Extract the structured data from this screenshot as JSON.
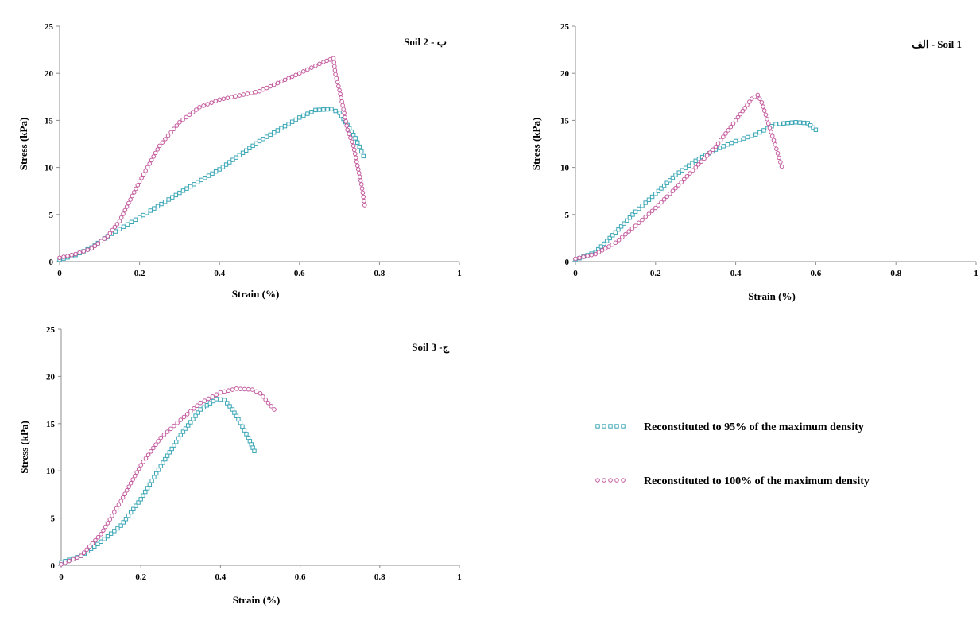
{
  "colors": {
    "series_95": "#3aa6b5",
    "series_100": "#c35a9e",
    "axis": "#8c8c8c"
  },
  "legend": {
    "items": [
      {
        "label": "Reconstituted to 95% of the maximum density",
        "marker": "square",
        "color": "#3aa6b5"
      },
      {
        "label": "Reconstituted to 100% of the maximum density",
        "marker": "circle",
        "color": "#c35a9e"
      }
    ]
  },
  "chart_data": [
    {
      "type": "scatter",
      "panel_label": "Soil 2 - ب",
      "xlabel": "Strain (%)",
      "ylabel": "Stress (kPa)",
      "xlim": [
        0,
        1
      ],
      "ylim": [
        0,
        25
      ],
      "xticks": [
        0,
        0.2,
        0.4,
        0.6,
        0.8,
        1
      ],
      "yticks": [
        0,
        5,
        10,
        15,
        20,
        25
      ],
      "grid": false,
      "series": [
        {
          "marker": "square",
          "color": "#3aa6b5",
          "points": [
            [
              0,
              0.2
            ],
            [
              0.04,
              0.7
            ],
            [
              0.08,
              1.5
            ],
            [
              0.12,
              2.7
            ],
            [
              0.16,
              3.7
            ],
            [
              0.2,
              4.7
            ],
            [
              0.3,
              7.3
            ],
            [
              0.4,
              9.8
            ],
            [
              0.5,
              12.8
            ],
            [
              0.6,
              15.3
            ],
            [
              0.64,
              16.1
            ],
            [
              0.68,
              16.2
            ],
            [
              0.7,
              15.8
            ],
            [
              0.72,
              14.5
            ],
            [
              0.74,
              13.1
            ],
            [
              0.75,
              12.2
            ],
            [
              0.76,
              11.2
            ]
          ]
        },
        {
          "marker": "circle",
          "color": "#c35a9e",
          "points": [
            [
              0,
              0.4
            ],
            [
              0.04,
              0.8
            ],
            [
              0.08,
              1.4
            ],
            [
              0.12,
              2.7
            ],
            [
              0.15,
              4.3
            ],
            [
              0.2,
              8.5
            ],
            [
              0.25,
              12.3
            ],
            [
              0.3,
              14.8
            ],
            [
              0.35,
              16.4
            ],
            [
              0.4,
              17.2
            ],
            [
              0.5,
              18.1
            ],
            [
              0.6,
              20.0
            ],
            [
              0.66,
              21.2
            ],
            [
              0.685,
              21.6
            ],
            [
              0.69,
              19.9
            ],
            [
              0.7,
              18.2
            ],
            [
              0.71,
              16.2
            ],
            [
              0.72,
              14.0
            ],
            [
              0.735,
              12.3
            ],
            [
              0.745,
              10.2
            ],
            [
              0.755,
              8.2
            ],
            [
              0.763,
              6.0
            ]
          ]
        }
      ]
    },
    {
      "type": "scatter",
      "panel_label": "الف - Soil 1",
      "xlabel": "Strain (%)",
      "ylabel": "Stress (kPa)",
      "xlim": [
        0,
        1
      ],
      "ylim": [
        0,
        25
      ],
      "xticks": [
        0,
        0.2,
        0.4,
        0.6,
        0.8,
        1
      ],
      "yticks": [
        0,
        5,
        10,
        15,
        20,
        25
      ],
      "grid": false,
      "series": [
        {
          "marker": "square",
          "color": "#3aa6b5",
          "points": [
            [
              0,
              0.2
            ],
            [
              0.05,
              1
            ],
            [
              0.1,
              3.1
            ],
            [
              0.15,
              5.3
            ],
            [
              0.2,
              7.2
            ],
            [
              0.25,
              9.2
            ],
            [
              0.3,
              10.7
            ],
            [
              0.35,
              11.9
            ],
            [
              0.4,
              12.8
            ],
            [
              0.45,
              13.5
            ],
            [
              0.5,
              14.6
            ],
            [
              0.55,
              14.8
            ],
            [
              0.58,
              14.7
            ],
            [
              0.6,
              14.0
            ]
          ]
        },
        {
          "marker": "circle",
          "color": "#c35a9e",
          "points": [
            [
              0,
              0.3
            ],
            [
              0.05,
              0.8
            ],
            [
              0.1,
              2
            ],
            [
              0.15,
              3.8
            ],
            [
              0.2,
              5.7
            ],
            [
              0.25,
              7.8
            ],
            [
              0.3,
              10
            ],
            [
              0.35,
              12.2
            ],
            [
              0.4,
              15
            ],
            [
              0.44,
              17.3
            ],
            [
              0.455,
              17.7
            ],
            [
              0.465,
              16.9
            ],
            [
              0.475,
              15.6
            ],
            [
              0.485,
              14.2
            ],
            [
              0.495,
              12.9
            ],
            [
              0.505,
              11.5
            ],
            [
              0.515,
              10.1
            ]
          ]
        }
      ]
    },
    {
      "type": "scatter",
      "panel_label": "Soil 3 -ج",
      "xlabel": "Strain (%)",
      "ylabel": "Stress (kPa)",
      "xlim": [
        0,
        1
      ],
      "ylim": [
        0,
        25
      ],
      "xticks": [
        0,
        0.2,
        0.4,
        0.6,
        0.8,
        1
      ],
      "yticks": [
        0,
        5,
        10,
        15,
        20,
        25
      ],
      "grid": false,
      "series": [
        {
          "marker": "square",
          "color": "#3aa6b5",
          "points": [
            [
              0,
              0.3
            ],
            [
              0.05,
              1
            ],
            [
              0.1,
              2.5
            ],
            [
              0.15,
              4.2
            ],
            [
              0.2,
              7
            ],
            [
              0.25,
              10.5
            ],
            [
              0.3,
              13.8
            ],
            [
              0.35,
              16.5
            ],
            [
              0.39,
              17.6
            ],
            [
              0.41,
              17.5
            ],
            [
              0.43,
              16.5
            ],
            [
              0.45,
              15.1
            ],
            [
              0.47,
              13.5
            ],
            [
              0.485,
              12.1
            ]
          ]
        },
        {
          "marker": "circle",
          "color": "#c35a9e",
          "points": [
            [
              0,
              0.1
            ],
            [
              0.05,
              1
            ],
            [
              0.1,
              3.3
            ],
            [
              0.15,
              6.8
            ],
            [
              0.2,
              10.6
            ],
            [
              0.25,
              13.5
            ],
            [
              0.3,
              15.4
            ],
            [
              0.35,
              17.2
            ],
            [
              0.4,
              18.3
            ],
            [
              0.44,
              18.7
            ],
            [
              0.48,
              18.6
            ],
            [
              0.5,
              18.2
            ],
            [
              0.52,
              17.2
            ],
            [
              0.535,
              16.5
            ]
          ]
        }
      ]
    }
  ]
}
